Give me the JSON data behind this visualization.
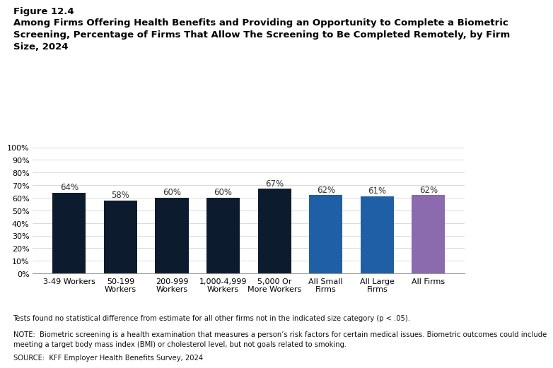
{
  "categories": [
    "3-49 Workers",
    "50-199\nWorkers",
    "200-999\nWorkers",
    "1,000-4,999\nWorkers",
    "5,000 Or\nMore Workers",
    "All Small\nFirms",
    "All Large\nFirms",
    "All Firms"
  ],
  "values": [
    64,
    58,
    60,
    60,
    67,
    62,
    61,
    62
  ],
  "bar_colors": [
    "#0d1b2e",
    "#0d1b2e",
    "#0d1b2e",
    "#0d1b2e",
    "#0d1b2e",
    "#1f5fa6",
    "#1f5fa6",
    "#8b6aad"
  ],
  "value_labels": [
    "64%",
    "58%",
    "60%",
    "60%",
    "67%",
    "62%",
    "61%",
    "62%"
  ],
  "title_line1": "Figure 12.4",
  "title_line2": "Among Firms Offering Health Benefits and Providing an Opportunity to Complete a Biometric\nScreening, Percentage of Firms That Allow The Screening to Be Completed Remotely, by Firm\nSize, 2024",
  "ylim": [
    0,
    100
  ],
  "yticks": [
    0,
    10,
    20,
    30,
    40,
    50,
    60,
    70,
    80,
    90,
    100
  ],
  "ytick_labels": [
    "0%",
    "10%",
    "20%",
    "30%",
    "40%",
    "50%",
    "60%",
    "70%",
    "80%",
    "90%",
    "100%"
  ],
  "footnote1": "Tests found no statistical difference from estimate for all other firms not in the indicated size category (p < .05).",
  "footnote2": "NOTE:  Biometric screening is a health examination that measures a person’s risk factors for certain medical issues. Biometric outcomes could include\nmeeting a target body mass index (BMI) or cholesterol level, but not goals related to smoking.",
  "footnote3": "SOURCE:  KFF Employer Health Benefits Survey, 2024",
  "background_color": "#ffffff",
  "label_fontsize": 8.0,
  "value_fontsize": 8.5,
  "title1_fontsize": 9.5,
  "title2_fontsize": 9.5,
  "footnote_fontsize": 7.2
}
